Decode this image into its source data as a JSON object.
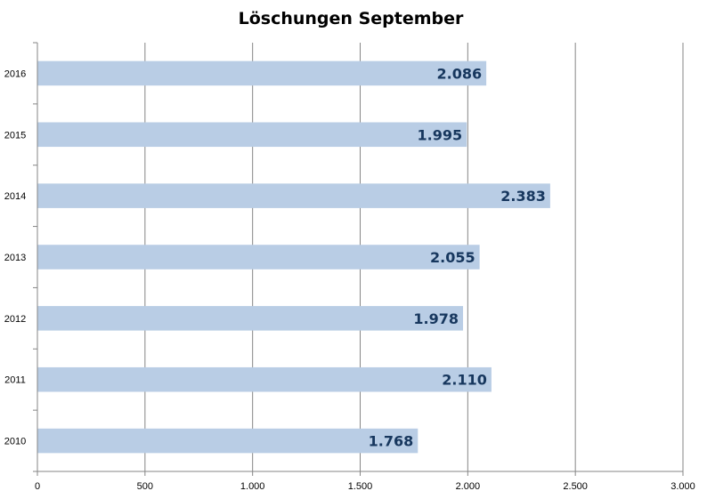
{
  "chart_data": {
    "type": "bar",
    "orientation": "horizontal",
    "title": "Löschungen September",
    "xlabel": "",
    "ylabel": "",
    "categories": [
      "2016",
      "2015",
      "2014",
      "2013",
      "2012",
      "2011",
      "2010"
    ],
    "values": [
      2086,
      1995,
      2383,
      2055,
      1978,
      2110,
      1768
    ],
    "value_labels": [
      "2.086",
      "1.995",
      "2.383",
      "2.055",
      "1.978",
      "2.110",
      "1.768"
    ],
    "xlim": [
      0,
      3000
    ],
    "x_ticks": [
      0,
      500,
      1000,
      1500,
      2000,
      2500,
      3000
    ],
    "x_tick_labels": [
      "0",
      "500",
      "1.000",
      "1.500",
      "2.000",
      "2.500",
      "3.000"
    ],
    "grid": "vertical",
    "legend": "none",
    "colors": {
      "bar": "#b9cde5",
      "label": "#17375e",
      "grid": "#868686",
      "axis": "#868686"
    }
  }
}
